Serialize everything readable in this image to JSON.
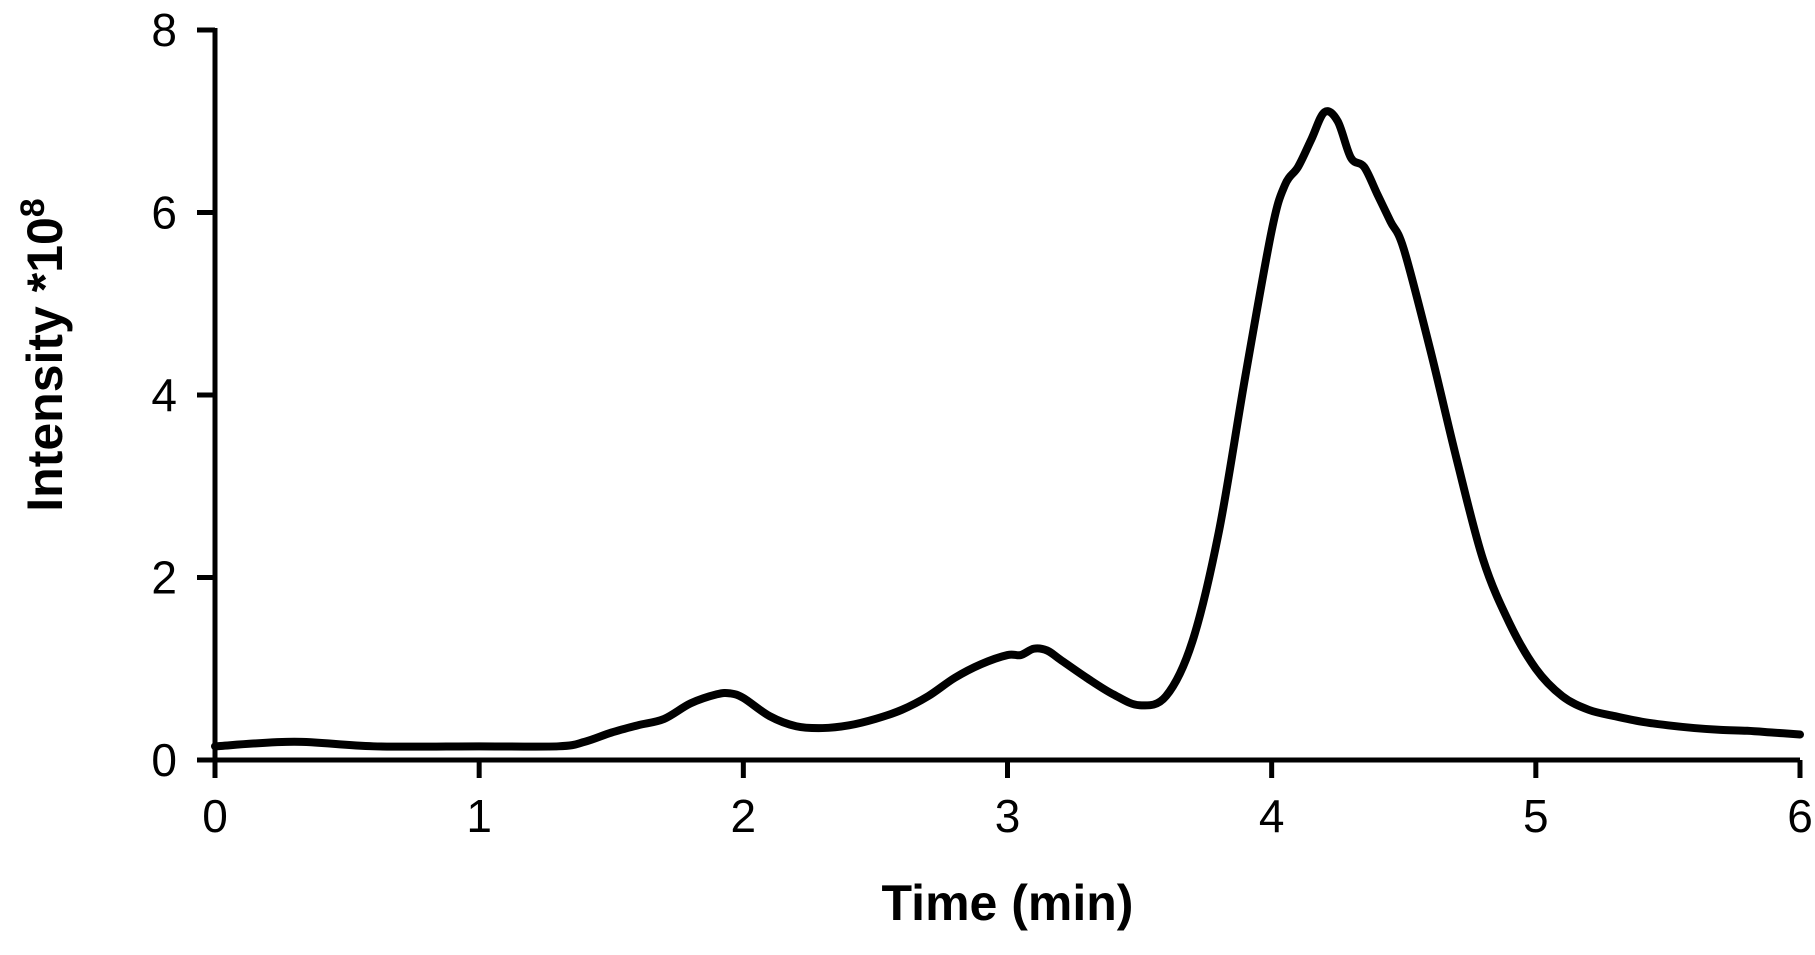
{
  "chart_data": {
    "type": "line",
    "title": "",
    "xlabel": "Time (min)",
    "ylabel": "Intensity *10",
    "ylabel_superscript": "8",
    "xlim": [
      0,
      6
    ],
    "ylim": [
      0,
      8
    ],
    "x_ticks": [
      0,
      1,
      2,
      3,
      4,
      5,
      6
    ],
    "y_ticks": [
      0,
      2,
      4,
      6,
      8
    ],
    "grid": false,
    "line_color": "#000000",
    "series": [
      {
        "x": [
          0,
          0.3,
          0.6,
          1.0,
          1.3,
          1.4,
          1.5,
          1.6,
          1.7,
          1.8,
          1.9,
          1.95,
          2.0,
          2.1,
          2.2,
          2.3,
          2.4,
          2.5,
          2.6,
          2.7,
          2.8,
          2.9,
          3.0,
          3.05,
          3.1,
          3.15,
          3.2,
          3.3,
          3.4,
          3.5,
          3.6,
          3.7,
          3.8,
          3.9,
          4.0,
          4.05,
          4.1,
          4.15,
          4.2,
          4.25,
          4.3,
          4.35,
          4.4,
          4.45,
          4.5,
          4.6,
          4.7,
          4.8,
          4.9,
          5.0,
          5.1,
          5.2,
          5.3,
          5.4,
          5.5,
          5.6,
          5.7,
          5.8,
          5.9,
          6.0
        ],
        "y": [
          0.15,
          0.2,
          0.15,
          0.15,
          0.15,
          0.2,
          0.3,
          0.38,
          0.45,
          0.62,
          0.72,
          0.73,
          0.68,
          0.48,
          0.37,
          0.35,
          0.38,
          0.45,
          0.55,
          0.7,
          0.9,
          1.05,
          1.15,
          1.15,
          1.22,
          1.2,
          1.1,
          0.9,
          0.72,
          0.6,
          0.7,
          1.3,
          2.5,
          4.2,
          5.8,
          6.3,
          6.5,
          6.8,
          7.1,
          7.0,
          6.6,
          6.5,
          6.2,
          5.9,
          5.6,
          4.5,
          3.3,
          2.2,
          1.5,
          1.0,
          0.7,
          0.55,
          0.48,
          0.42,
          0.38,
          0.35,
          0.33,
          0.32,
          0.3,
          0.28
        ]
      }
    ]
  }
}
